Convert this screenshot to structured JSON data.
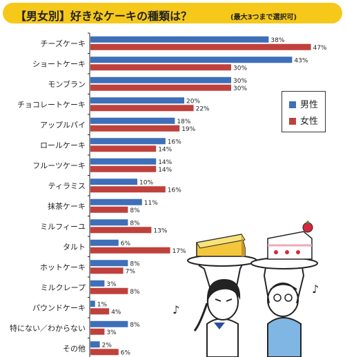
{
  "title": {
    "main": "【男女別】好きなケーキの種類は？",
    "sub": "(最大3つまで選択可)"
  },
  "colors": {
    "male": "#3e6fb8",
    "female": "#c0413c",
    "title_bg": "#f6c81a"
  },
  "chart_data": {
    "type": "bar",
    "orientation": "horizontal",
    "categories": [
      "チーズケーキ",
      "ショートケーキ",
      "モンブラン",
      "チョコレートケーキ",
      "アップルパイ",
      "ロールケーキ",
      "フルーツケーキ",
      "ティラミス",
      "抹茶ケーキ",
      "ミルフィーユ",
      "タルト",
      "ホットケーキ",
      "ミルクレープ",
      "パウンドケーキ",
      "特にない／わからない",
      "その他"
    ],
    "series": [
      {
        "name": "男性",
        "color": "#3e6fb8",
        "values": [
          38,
          43,
          30,
          20,
          18,
          16,
          14,
          10,
          11,
          8,
          6,
          8,
          3,
          1,
          8,
          2
        ]
      },
      {
        "name": "女性",
        "color": "#c0413c",
        "values": [
          47,
          30,
          30,
          22,
          19,
          14,
          14,
          16,
          8,
          13,
          17,
          7,
          8,
          4,
          3,
          6
        ]
      }
    ],
    "value_suffix": "%",
    "xlim": [
      0,
      50
    ],
    "grid": false,
    "legend_position": "right"
  }
}
